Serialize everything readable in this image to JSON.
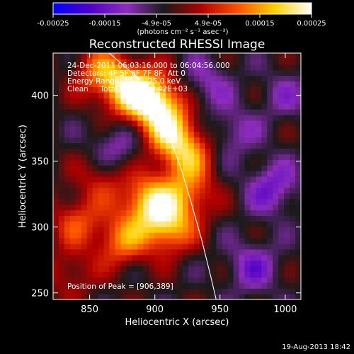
{
  "chart_data": {
    "type": "heatmap",
    "title": "Reconstructed RHESSI Image",
    "xlabel": "Heliocentric X (arcsec)",
    "ylabel": "Heliocentric Y (arcsec)",
    "xlim": [
      822,
      1012
    ],
    "ylim": [
      245,
      432
    ],
    "xticks": [
      850,
      900,
      950,
      1000
    ],
    "yticks": [
      250,
      300,
      350,
      400
    ],
    "colorbar": {
      "min": -0.00025,
      "max": 0.00025,
      "ticks": [
        "-0.00025",
        "-0.00015",
        "-4.9e-05",
        "4.9e-05",
        "0.00015",
        "0.00025"
      ],
      "label": "(photons cm⁻² s⁻¹ asec⁻²)",
      "colormap": [
        "#0000ff",
        "#5000c8",
        "#8e2dbd",
        "#1a1a1a",
        "#b00000",
        "#ff5000",
        "#ffd000",
        "#ffffff"
      ]
    },
    "annotations": [
      "24-Dec-2011 06:03:16.000 to 06:04:56.000",
      "Detectors: 4F 5F 6F 7F 8F, Att 0",
      "Energy Range: 12.0 - 25.0 keV",
      "Clean     Total Counts: 3.42E+03"
    ],
    "peak_label": "Position of Peak = [906,389]",
    "peak": [
      906,
      389
    ],
    "limb_points": [
      [
        865,
        432
      ],
      [
        885,
        415
      ],
      [
        900,
        395
      ],
      [
        910,
        372
      ],
      [
        920,
        345
      ],
      [
        928,
        318
      ],
      [
        936,
        290
      ],
      [
        943,
        262
      ],
      [
        947,
        245
      ]
    ],
    "sources": [
      {
        "x": 900,
        "y": 395,
        "value": 1.0
      },
      {
        "x": 880,
        "y": 405,
        "value": 0.85
      },
      {
        "x": 912,
        "y": 372,
        "value": 0.7
      },
      {
        "x": 925,
        "y": 355,
        "value": 0.6
      },
      {
        "x": 858,
        "y": 418,
        "value": 0.55
      },
      {
        "x": 895,
        "y": 320,
        "value": 0.8
      },
      {
        "x": 910,
        "y": 300,
        "value": 0.75
      },
      {
        "x": 875,
        "y": 290,
        "value": 0.6
      },
      {
        "x": 925,
        "y": 325,
        "value": 0.55
      },
      {
        "x": 840,
        "y": 305,
        "value": 0.45
      },
      {
        "x": 860,
        "y": 338,
        "value": 0.35
      },
      {
        "x": 835,
        "y": 265,
        "value": 0.3
      },
      {
        "x": 960,
        "y": 372,
        "value": -0.3
      },
      {
        "x": 990,
        "y": 330,
        "value": -0.45
      },
      {
        "x": 870,
        "y": 360,
        "value": -0.35
      },
      {
        "x": 975,
        "y": 270,
        "value": -0.4
      },
      {
        "x": 1000,
        "y": 400,
        "value": -0.25
      },
      {
        "x": 940,
        "y": 410,
        "value": -0.3
      }
    ]
  },
  "footer": {
    "timestamp": "19-Aug-2013 18:42"
  }
}
